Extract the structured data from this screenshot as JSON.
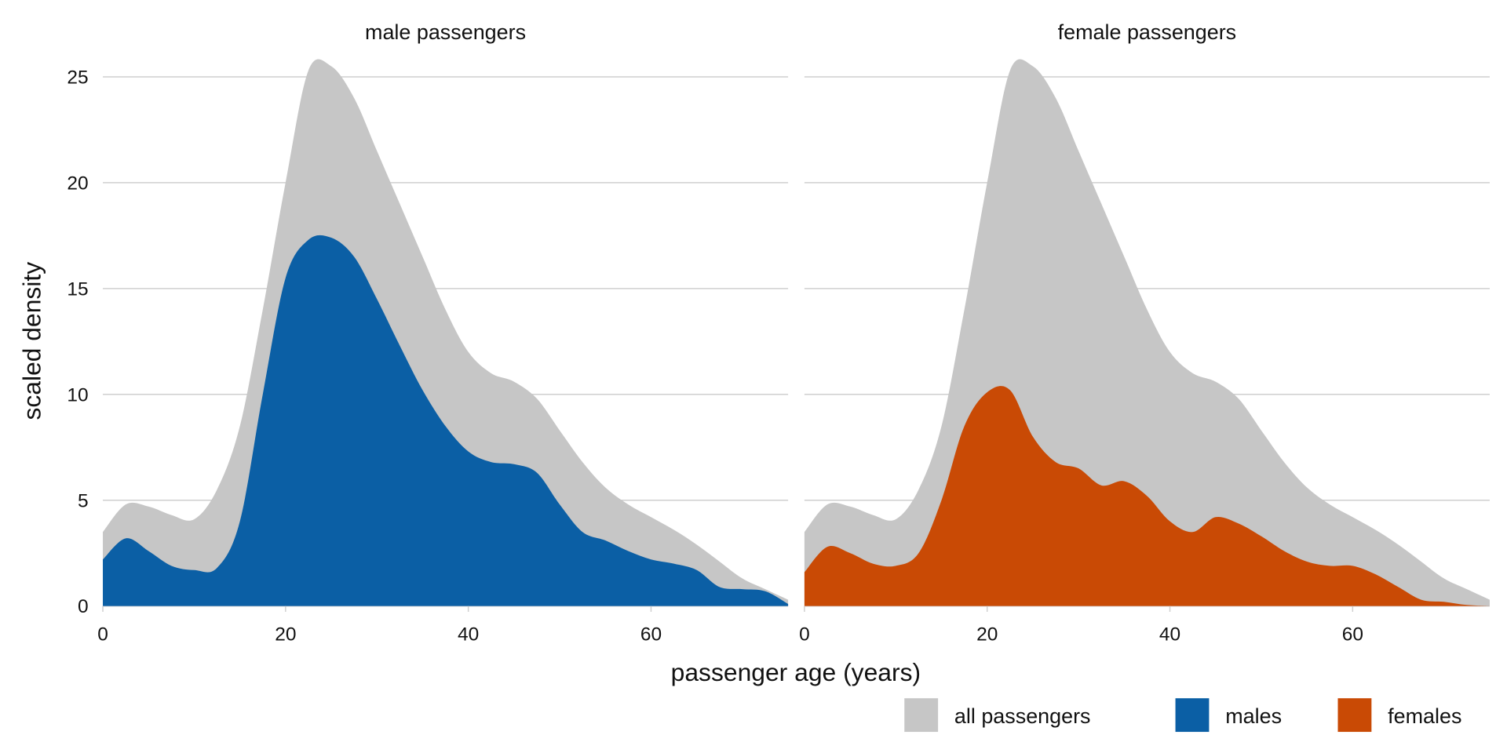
{
  "chart_data": {
    "type": "area",
    "xlabel": "passenger age (years)",
    "ylabel": "scaled density",
    "xlim": [
      0,
      75
    ],
    "ylim": [
      0,
      25
    ],
    "x_ticks": [
      "0",
      "20",
      "40",
      "60"
    ],
    "x_tick_values": [
      0,
      20,
      40,
      60
    ],
    "y_ticks": [
      "0",
      "5",
      "10",
      "15",
      "20",
      "25"
    ],
    "y_tick_values": [
      0,
      5,
      10,
      15,
      20,
      25
    ],
    "grid": "horizontal",
    "legend_position": "bottom-right",
    "legend": [
      {
        "label": "all passengers",
        "color": "#c6c6c6"
      },
      {
        "label": "males",
        "color": "#0b5fa5"
      },
      {
        "label": "females",
        "color": "#c94a05"
      }
    ],
    "x": [
      0,
      2.5,
      5,
      7.5,
      10,
      12.5,
      15,
      17.5,
      20,
      22.5,
      25,
      27.5,
      30,
      32.5,
      35,
      37.5,
      40,
      42.5,
      45,
      47.5,
      50,
      52.5,
      55,
      57.5,
      60,
      62.5,
      65,
      67.5,
      70,
      72.5,
      75
    ],
    "all_passengers": [
      3.5,
      4.8,
      4.7,
      4.3,
      4.1,
      5.5,
      8.5,
      14,
      20,
      25.3,
      25.5,
      24,
      21.5,
      19,
      16.5,
      14,
      12,
      11,
      10.6,
      9.8,
      8.3,
      6.8,
      5.6,
      4.8,
      4.2,
      3.6,
      2.9,
      2.1,
      1.3,
      0.8,
      0.3
    ],
    "panels": [
      {
        "title": "male passengers",
        "series_name": "males",
        "color": "#0b5fa5",
        "values": [
          2.2,
          3.2,
          2.6,
          1.9,
          1.7,
          1.8,
          4,
          10,
          15.5,
          17.3,
          17.4,
          16.5,
          14.5,
          12.3,
          10.2,
          8.5,
          7.3,
          6.8,
          6.7,
          6.3,
          4.8,
          3.5,
          3.1,
          2.6,
          2.2,
          2.0,
          1.7,
          0.9,
          0.8,
          0.7,
          0.1
        ]
      },
      {
        "title": "female passengers",
        "series_name": "females",
        "color": "#c94a05",
        "values": [
          1.6,
          2.8,
          2.5,
          2.0,
          1.9,
          2.5,
          5,
          8.5,
          10.1,
          10.2,
          8,
          6.8,
          6.5,
          5.7,
          5.9,
          5.2,
          4,
          3.5,
          4.2,
          3.9,
          3.3,
          2.6,
          2.1,
          1.9,
          1.9,
          1.5,
          0.9,
          0.3,
          0.2,
          0.05,
          0
        ]
      }
    ]
  }
}
